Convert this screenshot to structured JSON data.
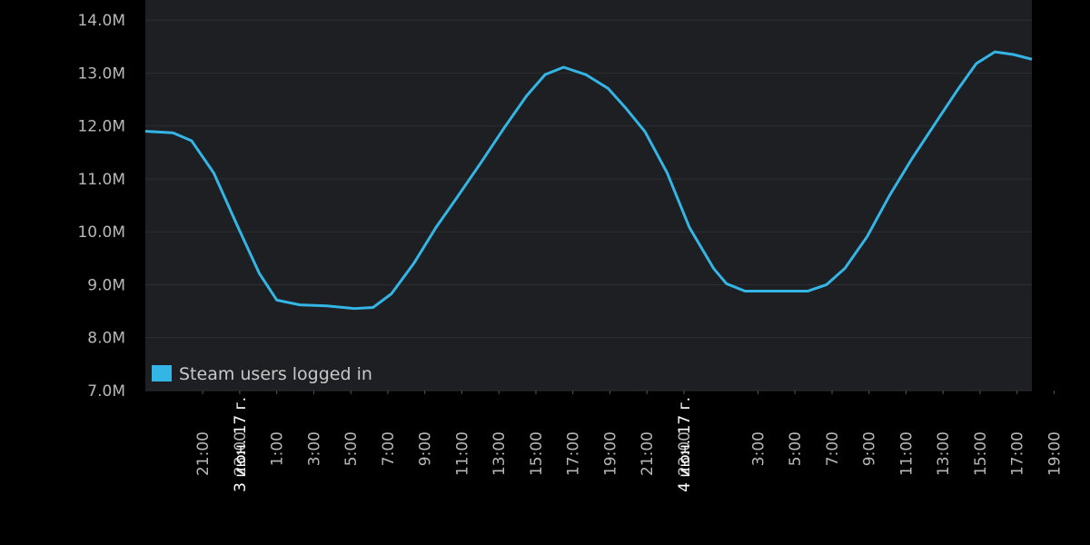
{
  "chart_data": {
    "type": "line",
    "legend": "top-left",
    "grid": true,
    "series": [
      {
        "name": "Steam users logged in",
        "color": "#33b5e5",
        "x": [
          -6.1,
          -4.6,
          -3.6,
          -2.4,
          -1.2,
          0.05,
          1.0,
          2.25,
          3.7,
          5.2,
          6.2,
          7.2,
          8.4,
          9.6,
          10.8,
          12.0,
          13.3,
          14.5,
          15.5,
          16.5,
          17.7,
          18.9,
          19.9,
          20.9,
          22.1,
          23.3,
          24.6,
          25.3,
          26.3,
          27.7,
          29.7,
          30.7,
          31.7,
          32.9,
          34.1,
          35.3,
          36.6,
          37.8,
          38.8,
          39.8,
          40.8,
          41.8
        ],
        "values": [
          11900000,
          11870000,
          11720000,
          11110000,
          10170000,
          9220000,
          8710000,
          8620000,
          8600000,
          8550000,
          8570000,
          8830000,
          9400000,
          10080000,
          10680000,
          11290000,
          11970000,
          12570000,
          12970000,
          13110000,
          12970000,
          12710000,
          12320000,
          11890000,
          11110000,
          10080000,
          9310000,
          9020000,
          8880000,
          8880000,
          8880000,
          9000000,
          9310000,
          9910000,
          10680000,
          11370000,
          12060000,
          12690000,
          13180000,
          13400000,
          13350000,
          13260000
        ]
      }
    ],
    "xlim": [
      -6.1,
      41.8
    ],
    "ylim": [
      7000000,
      14380000
    ],
    "yticks": [
      {
        "value": 7000000,
        "label": "7.0M"
      },
      {
        "value": 8000000,
        "label": "8.0M"
      },
      {
        "value": 9000000,
        "label": "9.0M"
      },
      {
        "value": 10000000,
        "label": "10.0M"
      },
      {
        "value": 11000000,
        "label": "11.0M"
      },
      {
        "value": 12000000,
        "label": "12.0M"
      },
      {
        "value": 13000000,
        "label": "13.0M"
      },
      {
        "value": 14000000,
        "label": "14.0M"
      }
    ],
    "xticks": [
      {
        "value": -3,
        "label": "21:00"
      },
      {
        "value": -1,
        "label": "23:00"
      },
      {
        "value": 1,
        "label": "1:00"
      },
      {
        "value": 3,
        "label": "3:00"
      },
      {
        "value": 5,
        "label": "5:00"
      },
      {
        "value": 7,
        "label": "7:00"
      },
      {
        "value": 9,
        "label": "9:00"
      },
      {
        "value": 11,
        "label": "11:00"
      },
      {
        "value": 13,
        "label": "13:00"
      },
      {
        "value": 15,
        "label": "15:00"
      },
      {
        "value": 17,
        "label": "17:00"
      },
      {
        "value": 19,
        "label": "19:00"
      },
      {
        "value": 21,
        "label": "21:00"
      },
      {
        "value": 23,
        "label": "23:00"
      },
      {
        "value": 27,
        "label": "3:00"
      },
      {
        "value": 29,
        "label": "5:00"
      },
      {
        "value": 31,
        "label": "7:00"
      },
      {
        "value": 33,
        "label": "9:00"
      },
      {
        "value": 35,
        "label": "11:00"
      },
      {
        "value": 37,
        "label": "13:00"
      },
      {
        "value": 39,
        "label": "15:00"
      },
      {
        "value": 41,
        "label": "17:00"
      },
      {
        "value": 43,
        "label": "19:00"
      }
    ],
    "xmajor_ticks": [
      {
        "value": -1,
        "label": "3 июн. 17 г."
      },
      {
        "value": 23,
        "label": "4 июн. 17 г."
      }
    ]
  }
}
